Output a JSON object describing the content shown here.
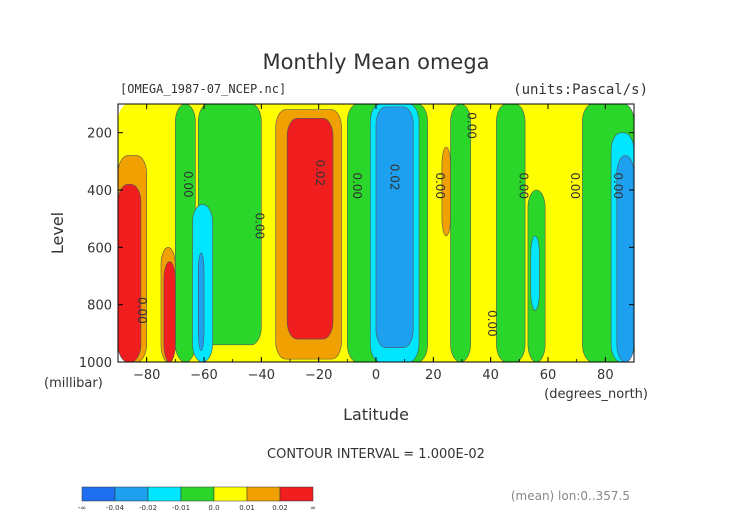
{
  "chart_data": {
    "type": "heatmap",
    "title": "Monthly Mean omega",
    "file_label": "[OMEGA_1987-07_NCEP.nc]",
    "units_label": "(units:Pascal/s)",
    "xlabel": "Latitude",
    "x_unit_label": "(degrees_north)",
    "ylabel": "Level",
    "y_unit_label": "(millibar)",
    "xlim": [
      -90,
      90
    ],
    "ylim": [
      1000,
      100
    ],
    "x_ticks": [
      -80,
      -60,
      -40,
      -20,
      0,
      20,
      40,
      60,
      80
    ],
    "x_tick_labels": [
      "-80",
      "-60",
      "-40",
      "-20",
      "0",
      "20",
      "40",
      "60",
      "80"
    ],
    "y_ticks": [
      200,
      400,
      600,
      800,
      1000
    ],
    "y_tick_labels": [
      "200",
      "400",
      "600",
      "800",
      "1000"
    ],
    "contour_interval_text": "CONTOUR INTERVAL = 1.000E-02",
    "mean_text": "(mean) lon:0..357.5",
    "colorbar": {
      "labels": [
        "-∞",
        "-0.04",
        "-0.02",
        "-0.01",
        "0.0",
        "0.01",
        "0.02",
        "∞"
      ],
      "colors": [
        "#1e6ff0",
        "#1ea0f0",
        "#00e6ff",
        "#2ad62a",
        "#ffff00",
        "#f0a000",
        "#f01e1e"
      ]
    },
    "contour_labels": [
      {
        "text": "0.00",
        "lat": -67,
        "p": 380
      },
      {
        "text": "0.00",
        "lat": -42,
        "p": 525
      },
      {
        "text": "0.02",
        "lat": -21,
        "p": 340
      },
      {
        "text": "0.00",
        "lat": -8,
        "p": 385
      },
      {
        "text": "0.02",
        "lat": 5,
        "p": 355
      },
      {
        "text": "0.00",
        "lat": 21,
        "p": 385
      },
      {
        "text": "0.00",
        "lat": 32,
        "p": 175
      },
      {
        "text": "0.00",
        "lat": 39,
        "p": 865
      },
      {
        "text": "0.00",
        "lat": 50,
        "p": 385
      },
      {
        "text": "0.00",
        "lat": 68,
        "p": 385
      },
      {
        "text": "0.00",
        "lat": 83,
        "p": 385
      },
      {
        "text": "0.00",
        "lat": -83,
        "p": 820
      }
    ],
    "regions": [
      {
        "level": "0.0-0.01",
        "color": "#ffff00",
        "lat": [
          -90,
          90
        ],
        "p": [
          100,
          1000
        ]
      },
      {
        "level": "-0.01-0.0",
        "color": "#2ad62a",
        "lat": [
          -70,
          -63
        ],
        "p": [
          100,
          1000
        ]
      },
      {
        "level": "-0.01-0.0",
        "color": "#2ad62a",
        "lat": [
          -62,
          -40
        ],
        "p": [
          100,
          940
        ]
      },
      {
        "level": "-0.02--0.01",
        "color": "#00e6ff",
        "lat": [
          -64,
          -57
        ],
        "p": [
          450,
          1000
        ]
      },
      {
        "level": "-0.04--0.02",
        "color": "#1ea0f0",
        "lat": [
          -62,
          -60
        ],
        "p": [
          620,
          960
        ]
      },
      {
        "level": "0.01-0.02",
        "color": "#f0a000",
        "lat": [
          -35,
          -12
        ],
        "p": [
          120,
          990
        ]
      },
      {
        "level": ">0.02",
        "color": "#f01e1e",
        "lat": [
          -31,
          -15
        ],
        "p": [
          150,
          920
        ]
      },
      {
        "level": "-0.01-0.0",
        "color": "#2ad62a",
        "lat": [
          -10,
          18
        ],
        "p": [
          100,
          1000
        ]
      },
      {
        "level": "-0.02--0.01",
        "color": "#00e6ff",
        "lat": [
          -2,
          15
        ],
        "p": [
          100,
          1000
        ]
      },
      {
        "level": "-0.04--0.02",
        "color": "#1ea0f0",
        "lat": [
          0,
          13
        ],
        "p": [
          110,
          950
        ]
      },
      {
        "level": "-0.01-0.0",
        "color": "#2ad62a",
        "lat": [
          26,
          33
        ],
        "p": [
          100,
          1000
        ]
      },
      {
        "level": "0.01-0.02",
        "color": "#f0a000",
        "lat": [
          23,
          26
        ],
        "p": [
          250,
          560
        ]
      },
      {
        "level": "-0.01-0.0",
        "color": "#2ad62a",
        "lat": [
          42,
          52
        ],
        "p": [
          100,
          1000
        ]
      },
      {
        "level": "-0.01-0.0",
        "color": "#2ad62a",
        "lat": [
          53,
          59
        ],
        "p": [
          400,
          1000
        ]
      },
      {
        "level": "-0.02--0.01",
        "color": "#00e6ff",
        "lat": [
          54,
          57
        ],
        "p": [
          560,
          820
        ]
      },
      {
        "level": "-0.01-0.0",
        "color": "#2ad62a",
        "lat": [
          72,
          90
        ],
        "p": [
          100,
          1000
        ]
      },
      {
        "level": "-0.02--0.01",
        "color": "#00e6ff",
        "lat": [
          82,
          90
        ],
        "p": [
          200,
          1000
        ]
      },
      {
        "level": "-0.04--0.02",
        "color": "#1ea0f0",
        "lat": [
          84,
          90
        ],
        "p": [
          280,
          1000
        ]
      },
      {
        "level": "0.01-0.02",
        "color": "#f0a000",
        "lat": [
          -90,
          -80
        ],
        "p": [
          280,
          1000
        ]
      },
      {
        "level": ">0.02",
        "color": "#f01e1e",
        "lat": [
          -90,
          -82
        ],
        "p": [
          380,
          1000
        ]
      },
      {
        "level": "0.01-0.02",
        "color": "#f0a000",
        "lat": [
          -75,
          -70
        ],
        "p": [
          600,
          1000
        ]
      },
      {
        "level": ">0.02",
        "color": "#f01e1e",
        "lat": [
          -74,
          -70
        ],
        "p": [
          650,
          1000
        ]
      }
    ]
  }
}
